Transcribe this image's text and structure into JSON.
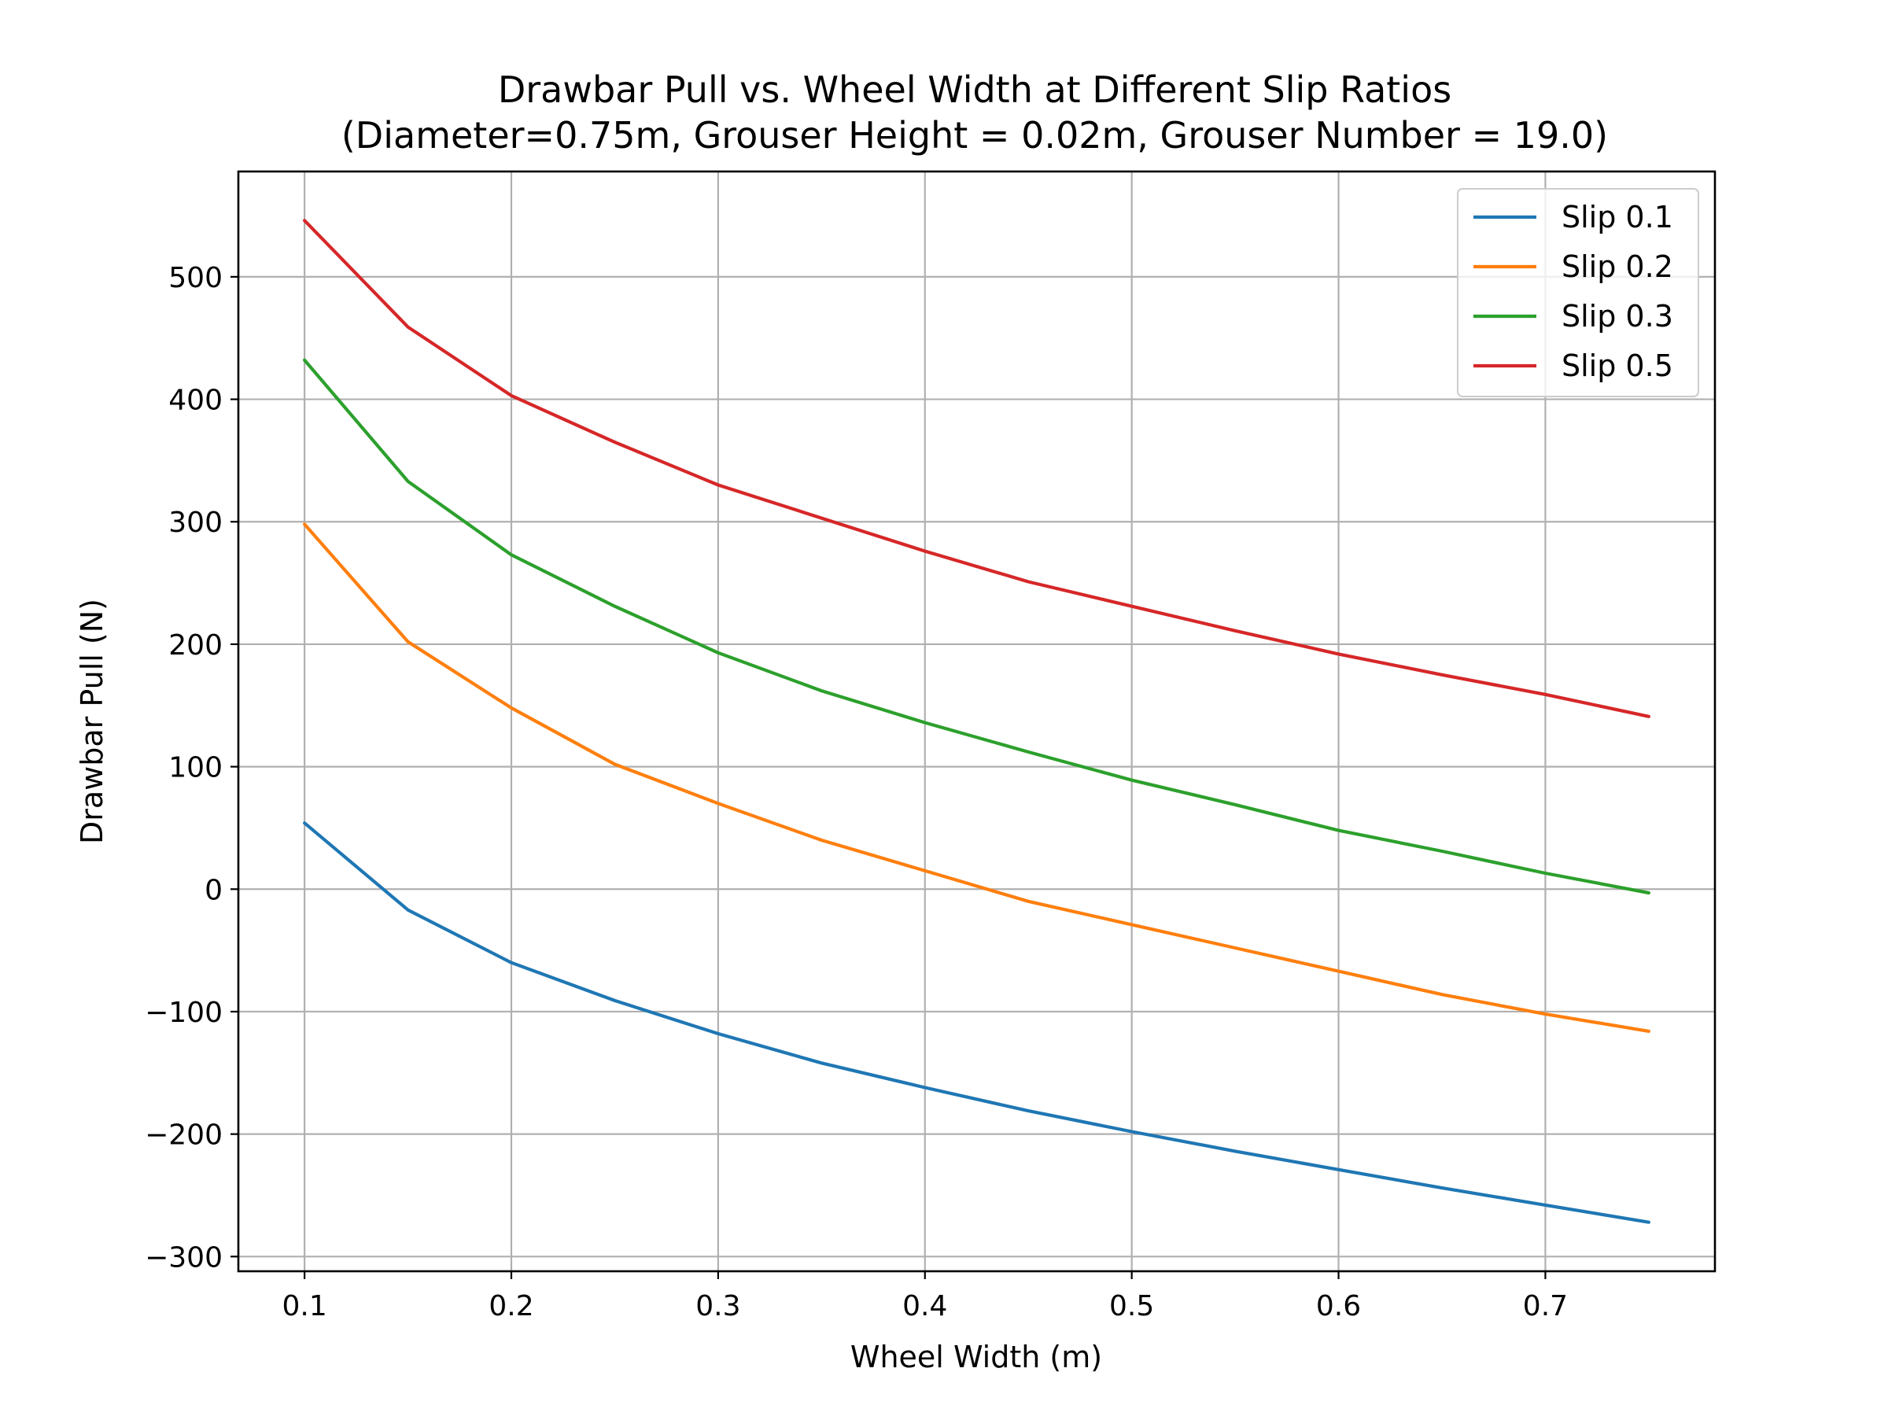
{
  "chart_data": {
    "type": "line",
    "title": "Drawbar Pull vs. Wheel Width at Different Slip Ratios",
    "subtitle": "(Diameter=0.75m, Grouser Height = 0.02m, Grouser Number = 19.0)",
    "xlabel": "Wheel Width (m)",
    "ylabel": "Drawbar Pull (N)",
    "xlim": [
      0.068,
      0.782
    ],
    "ylim": [
      -312,
      586
    ],
    "x_ticks": [
      0.1,
      0.2,
      0.3,
      0.4,
      0.5,
      0.6,
      0.7
    ],
    "x_tick_labels": [
      "0.1",
      "0.2",
      "0.3",
      "0.4",
      "0.5",
      "0.6",
      "0.7"
    ],
    "y_ticks": [
      -300,
      -200,
      -100,
      0,
      100,
      200,
      300,
      400,
      500
    ],
    "y_tick_labels": [
      "−300",
      "−200",
      "−100",
      "0",
      "100",
      "200",
      "300",
      "400",
      "500"
    ],
    "grid": true,
    "legend_position": "upper right",
    "x": [
      0.1,
      0.15,
      0.2,
      0.25,
      0.3,
      0.35,
      0.4,
      0.45,
      0.5,
      0.55,
      0.6,
      0.65,
      0.7,
      0.75
    ],
    "series": [
      {
        "name": "Slip 0.1",
        "color": "#1f77b4",
        "values": [
          54,
          -17,
          -60,
          -91,
          -118,
          -142,
          -162,
          -181,
          -198,
          -214,
          -229,
          -244,
          -258,
          -272
        ]
      },
      {
        "name": "Slip 0.2",
        "color": "#ff7f0e",
        "values": [
          298,
          202,
          148,
          102,
          70,
          40,
          15,
          -10,
          -29,
          -48,
          -67,
          -86,
          -102,
          -116
        ]
      },
      {
        "name": "Slip 0.3",
        "color": "#2ca02c",
        "values": [
          432,
          333,
          273,
          231,
          193,
          162,
          136,
          112,
          89,
          69,
          48,
          31,
          13,
          -3
        ]
      },
      {
        "name": "Slip 0.5",
        "color": "#d62728",
        "values": [
          546,
          459,
          403,
          365,
          330,
          303,
          276,
          251,
          231,
          211,
          192,
          175,
          159,
          141
        ]
      }
    ]
  }
}
